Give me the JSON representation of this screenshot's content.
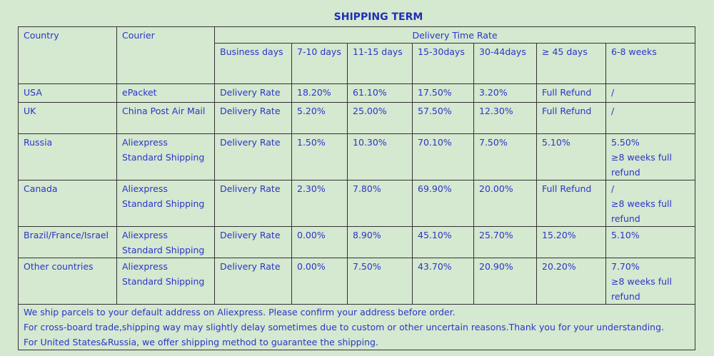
{
  "title": "SHIPPING TERM",
  "table": {
    "header": {
      "country": "Country",
      "courier": "Courier",
      "group": "Delivery Time Rate",
      "columns": [
        "Business days",
        "7-10 days",
        "11-15 days",
        "15-30days",
        "30-44days",
        "≥ 45 days",
        "6-8 weeks"
      ]
    },
    "rows": [
      [
        [
          "USA"
        ],
        [
          "ePacket"
        ],
        [
          "Delivery Rate"
        ],
        [
          "18.20%"
        ],
        [
          "61.10%"
        ],
        [
          "17.50%"
        ],
        [
          "3.20%"
        ],
        [
          "Full Refund"
        ],
        [
          "/"
        ]
      ],
      [
        [
          "UK"
        ],
        [
          "China Post Air Mail"
        ],
        [
          "Delivery Rate"
        ],
        [
          "5.20%"
        ],
        [
          "25.00%"
        ],
        [
          "57.50%"
        ],
        [
          "12.30%"
        ],
        [
          "Full Refund"
        ],
        [
          "/"
        ]
      ],
      [
        [
          "Russia"
        ],
        [
          "Aliexpress",
          "Standard Shipping"
        ],
        [
          "Delivery Rate"
        ],
        [
          "1.50%"
        ],
        [
          "10.30%"
        ],
        [
          "70.10%"
        ],
        [
          "7.50%"
        ],
        [
          "5.10%"
        ],
        [
          "5.50%",
          "≥8 weeks full",
          "refund"
        ]
      ],
      [
        [
          "Canada"
        ],
        [
          "Aliexpress",
          "Standard Shipping"
        ],
        [
          "Delivery Rate"
        ],
        [
          "2.30%"
        ],
        [
          "7.80%"
        ],
        [
          "69.90%"
        ],
        [
          "20.00%"
        ],
        [
          "Full Refund"
        ],
        [
          "/",
          "≥8 weeks full",
          "refund"
        ]
      ],
      [
        [
          "Brazil/France/Israel"
        ],
        [
          "Aliexpress",
          "Standard Shipping"
        ],
        [
          "Delivery Rate"
        ],
        [
          "0.00%"
        ],
        [
          "8.90%"
        ],
        [
          "45.10%"
        ],
        [
          "25.70%"
        ],
        [
          "15.20%"
        ],
        [
          "5.10%"
        ]
      ],
      [
        [
          "Other countries"
        ],
        [
          "Aliexpress",
          "Standard Shipping"
        ],
        [
          "Delivery Rate"
        ],
        [
          "0.00%"
        ],
        [
          "7.50%"
        ],
        [
          "43.70%"
        ],
        [
          "20.90%"
        ],
        [
          "20.20%"
        ],
        [
          "7.70%",
          "≥8 weeks full",
          "refund"
        ]
      ]
    ],
    "notes": [
      "We ship parcels to your default address on Aliexpress. Please confirm your address before order.",
      "For cross-board trade,shipping way may slightly delay sometimes due to custom or other uncertain reasons.Thank you for your understanding.",
      "For United States&Russia, we offer shipping method to guarantee the shipping."
    ]
  }
}
